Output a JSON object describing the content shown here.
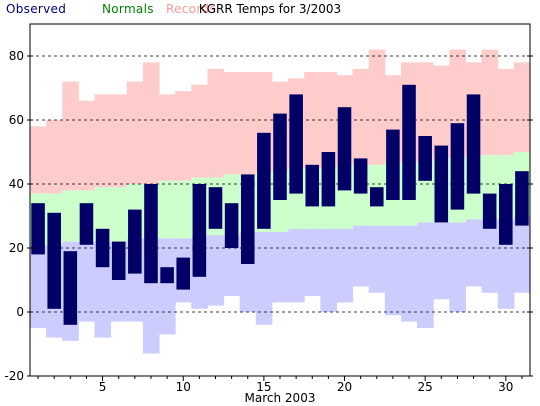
{
  "chart_data": {
    "type": "bar",
    "title": "KGRR Temps for 3/2003",
    "xlabel": "March 2003",
    "ylabel": "",
    "ylim": [
      -20,
      90
    ],
    "xlim": [
      0.5,
      31.5
    ],
    "yticks": [
      -20,
      0,
      20,
      40,
      60,
      80
    ],
    "xticks": [
      5,
      10,
      15,
      20,
      25,
      30
    ],
    "legend_position": "top-left",
    "colors": {
      "observed": "#000066",
      "normals": "#ccffcc",
      "records": "#ffcccc",
      "records_low": "#ccccff",
      "legend_observed": "#000080",
      "legend_normals": "#008000",
      "legend_records": "#ff9999"
    },
    "series": [
      {
        "name": "Observed",
        "days": [
          1,
          2,
          3,
          4,
          5,
          6,
          7,
          8,
          9,
          10,
          11,
          12,
          13,
          14,
          15,
          16,
          17,
          18,
          19,
          20,
          21,
          22,
          23,
          24,
          25,
          26,
          27,
          28,
          29,
          30,
          31
        ],
        "high": [
          34,
          31,
          19,
          34,
          26,
          22,
          32,
          40,
          14,
          17,
          40,
          39,
          34,
          43,
          56,
          62,
          68,
          46,
          50,
          64,
          48,
          39,
          57,
          71,
          55,
          52,
          59,
          68,
          37,
          40,
          44
        ],
        "low": [
          18,
          1,
          -4,
          21,
          14,
          10,
          12,
          9,
          9,
          7,
          11,
          26,
          20,
          15,
          26,
          35,
          37,
          33,
          33,
          38,
          37,
          33,
          35,
          35,
          41,
          28,
          32,
          37,
          26,
          21,
          27
        ]
      },
      {
        "name": "Normals",
        "days": [
          1,
          2,
          3,
          4,
          5,
          6,
          7,
          8,
          9,
          10,
          11,
          12,
          13,
          14,
          15,
          16,
          17,
          18,
          19,
          20,
          21,
          22,
          23,
          24,
          25,
          26,
          27,
          28,
          29,
          30,
          31
        ],
        "high": [
          37,
          37,
          38,
          38,
          39,
          39,
          40,
          40,
          41,
          41,
          42,
          42,
          43,
          43,
          44,
          44,
          45,
          45,
          45,
          46,
          46,
          46,
          47,
          47,
          47,
          48,
          48,
          49,
          49,
          49,
          50
        ],
        "low": [
          21,
          21,
          22,
          22,
          22,
          22,
          23,
          23,
          23,
          23,
          24,
          24,
          24,
          25,
          25,
          25,
          26,
          26,
          26,
          26,
          27,
          27,
          27,
          27,
          28,
          28,
          28,
          29,
          29,
          29,
          30
        ]
      },
      {
        "name": "Records",
        "days": [
          1,
          2,
          3,
          4,
          5,
          6,
          7,
          8,
          9,
          10,
          11,
          12,
          13,
          14,
          15,
          16,
          17,
          18,
          19,
          20,
          21,
          22,
          23,
          24,
          25,
          26,
          27,
          28,
          29,
          30,
          31
        ],
        "high": [
          58,
          60,
          72,
          66,
          68,
          68,
          72,
          78,
          68,
          69,
          71,
          76,
          75,
          75,
          75,
          72,
          73,
          75,
          75,
          74,
          76,
          82,
          74,
          78,
          78,
          77,
          82,
          78,
          82,
          76,
          78
        ],
        "low": [
          -5,
          -8,
          -9,
          -3,
          -8,
          -3,
          -3,
          -13,
          -7,
          3,
          1,
          2,
          5,
          0,
          -4,
          3,
          3,
          5,
          0,
          3,
          8,
          6,
          -1,
          -3,
          -5,
          4,
          0,
          8,
          6,
          1,
          6
        ]
      }
    ]
  }
}
